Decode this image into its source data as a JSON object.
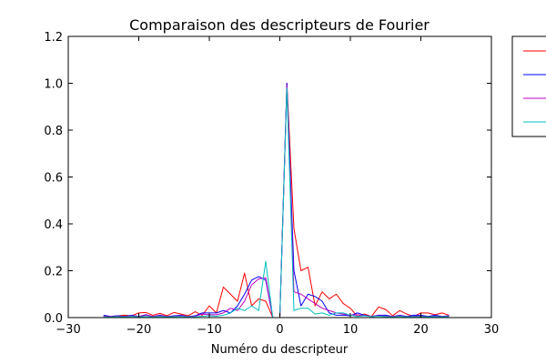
{
  "chart_data": {
    "type": "line",
    "title": "Comparaison des descripteurs de Fourier",
    "xlabel": "Numéro du descripteur",
    "ylabel": "",
    "xlim": [
      -30,
      30
    ],
    "ylim": [
      0,
      1.2
    ],
    "xticks": [
      -30,
      -20,
      -10,
      0,
      10,
      20,
      30
    ],
    "yticks": [
      0.0,
      0.2,
      0.4,
      0.6,
      0.8,
      1.0,
      1.2
    ],
    "xtick_labels": [
      "−30",
      "−20",
      "−10",
      "0",
      "10",
      "20",
      "30"
    ],
    "ytick_labels": [
      "0.0",
      "0.2",
      "0.4",
      "0.6",
      "0.8",
      "1.0",
      "1.2"
    ],
    "grid": false,
    "legend": {
      "placement": "outside-right-top"
    },
    "series": [
      {
        "color": "#ff0000",
        "x": [
          -25,
          -24,
          -23,
          -22,
          -21,
          -20,
          -19,
          -18,
          -17,
          -16,
          -15,
          -14,
          -13,
          -12,
          -11,
          -10,
          -9,
          -8,
          -7,
          -6,
          -5,
          -4,
          -3,
          -2,
          -1,
          0,
          1,
          2,
          3,
          4,
          5,
          6,
          7,
          8,
          9,
          10,
          11,
          12,
          13,
          14,
          15,
          16,
          17,
          18,
          19,
          20,
          21,
          22,
          23,
          24
        ],
        "y": [
          0.005,
          0.003,
          0.008,
          0.01,
          0.008,
          0.02,
          0.022,
          0.01,
          0.018,
          0.008,
          0.022,
          0.015,
          0.008,
          0.025,
          0.01,
          0.05,
          0.02,
          0.13,
          0.1,
          0.07,
          0.19,
          0.05,
          0.08,
          0.07,
          0.0,
          0.0,
          1.0,
          0.38,
          0.2,
          0.215,
          0.05,
          0.11,
          0.08,
          0.1,
          0.06,
          0.04,
          0.005,
          0.015,
          0.005,
          0.045,
          0.035,
          0.008,
          0.03,
          0.015,
          0.005,
          0.02,
          0.02,
          0.012,
          0.02,
          0.01
        ]
      },
      {
        "color": "#0000ff",
        "x": [
          -25,
          -24,
          -23,
          -22,
          -21,
          -20,
          -19,
          -18,
          -17,
          -16,
          -15,
          -14,
          -13,
          -12,
          -11,
          -10,
          -9,
          -8,
          -7,
          -6,
          -5,
          -4,
          -3,
          -2,
          -1,
          0,
          1,
          2,
          3,
          4,
          5,
          6,
          7,
          8,
          9,
          10,
          11,
          12,
          13,
          14,
          15,
          16,
          17,
          18,
          19,
          20,
          21,
          22,
          23,
          24
        ],
        "y": [
          0.01,
          0.005,
          0.008,
          0.005,
          0.01,
          0.005,
          0.012,
          0.005,
          0.01,
          0.005,
          0.008,
          0.01,
          0.005,
          0.008,
          0.02,
          0.02,
          0.02,
          0.03,
          0.02,
          0.05,
          0.1,
          0.16,
          0.175,
          0.16,
          0.0,
          0.0,
          1.0,
          0.2,
          0.05,
          0.1,
          0.09,
          0.07,
          0.02,
          0.01,
          0.01,
          0.008,
          0.02,
          0.01,
          0.005,
          0.01,
          0.01,
          0.005,
          0.01,
          0.005,
          0.01,
          0.01,
          0.005,
          0.01,
          0.005,
          0.008
        ]
      },
      {
        "color": "#bf00bf",
        "x": [
          -25,
          -24,
          -23,
          -22,
          -21,
          -20,
          -19,
          -18,
          -17,
          -16,
          -15,
          -14,
          -13,
          -12,
          -11,
          -10,
          -9,
          -8,
          -7,
          -6,
          -5,
          -4,
          -3,
          -2,
          -1,
          0,
          1,
          2,
          3,
          4,
          5,
          6,
          7,
          8,
          9,
          10,
          11,
          12,
          13,
          14,
          15,
          16,
          17,
          18,
          19,
          20,
          21,
          22,
          23,
          24
        ],
        "y": [
          0.005,
          0.004,
          0.006,
          0.004,
          0.008,
          0.005,
          0.01,
          0.006,
          0.008,
          0.005,
          0.006,
          0.008,
          0.005,
          0.006,
          0.015,
          0.012,
          0.012,
          0.02,
          0.04,
          0.03,
          0.07,
          0.14,
          0.165,
          0.17,
          0.0,
          0.0,
          0.99,
          0.11,
          0.1,
          0.08,
          0.06,
          0.04,
          0.03,
          0.02,
          0.015,
          0.01,
          0.012,
          0.008,
          0.006,
          0.008,
          0.006,
          0.005,
          0.008,
          0.004,
          0.006,
          0.006,
          0.004,
          0.006,
          0.004,
          0.006
        ]
      },
      {
        "color": "#00bfbf",
        "x": [
          -25,
          -24,
          -23,
          -22,
          -21,
          -20,
          -19,
          -18,
          -17,
          -16,
          -15,
          -14,
          -13,
          -12,
          -11,
          -10,
          -9,
          -8,
          -7,
          -6,
          -5,
          -4,
          -3,
          -2,
          -1,
          0,
          1,
          2,
          3,
          4,
          5,
          6,
          7,
          8,
          9,
          10,
          11,
          12,
          13,
          14,
          15,
          16,
          17,
          18,
          19,
          20,
          21,
          22,
          23,
          24
        ],
        "y": [
          0.003,
          0.002,
          0.004,
          0.003,
          0.005,
          0.003,
          0.005,
          0.003,
          0.005,
          0.003,
          0.004,
          0.005,
          0.003,
          0.004,
          0.006,
          0.008,
          0.006,
          0.01,
          0.02,
          0.04,
          0.03,
          0.05,
          0.03,
          0.24,
          0.0,
          0.0,
          0.98,
          0.03,
          0.04,
          0.04,
          0.015,
          0.02,
          0.01,
          0.02,
          0.02,
          0.01,
          0.005,
          0.008,
          0.004,
          0.006,
          0.004,
          0.003,
          0.005,
          0.003,
          0.004,
          0.004,
          0.003,
          0.004,
          0.003,
          0.004
        ]
      }
    ]
  }
}
